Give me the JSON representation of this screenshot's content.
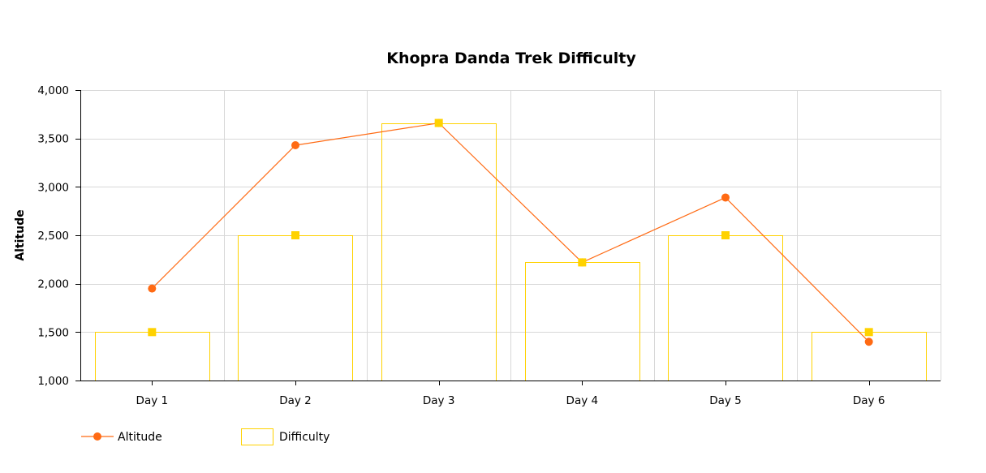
{
  "chart_data": {
    "type": "bar",
    "title": "Khopra Danda Trek Difficulty",
    "xlabel": "",
    "ylabel": "Altitude",
    "categories": [
      "Day 1",
      "Day 2",
      "Day 3",
      "Day 4",
      "Day 5",
      "Day 6"
    ],
    "ylim": [
      1000,
      4000
    ],
    "yticks": [
      1000,
      1500,
      2000,
      2500,
      3000,
      3500,
      4000
    ],
    "ytick_labels": [
      "1,000",
      "1,500",
      "2,000",
      "2,500",
      "3,000",
      "3,500",
      "4,000"
    ],
    "series": [
      {
        "name": "Altitude",
        "kind": "line",
        "color": "#FF6A13",
        "marker": "circle",
        "values": [
          1950,
          3430,
          3660,
          2220,
          2890,
          1400
        ]
      },
      {
        "name": "Difficulty",
        "kind": "bar",
        "color": "#FFD200",
        "marker": "square",
        "values": [
          1500,
          2500,
          3660,
          2220,
          2500,
          1500
        ]
      }
    ],
    "grid": true,
    "legend_position": "bottom-left",
    "colors": {
      "grid": "#D8D8D8",
      "axis": "#000000"
    }
  }
}
